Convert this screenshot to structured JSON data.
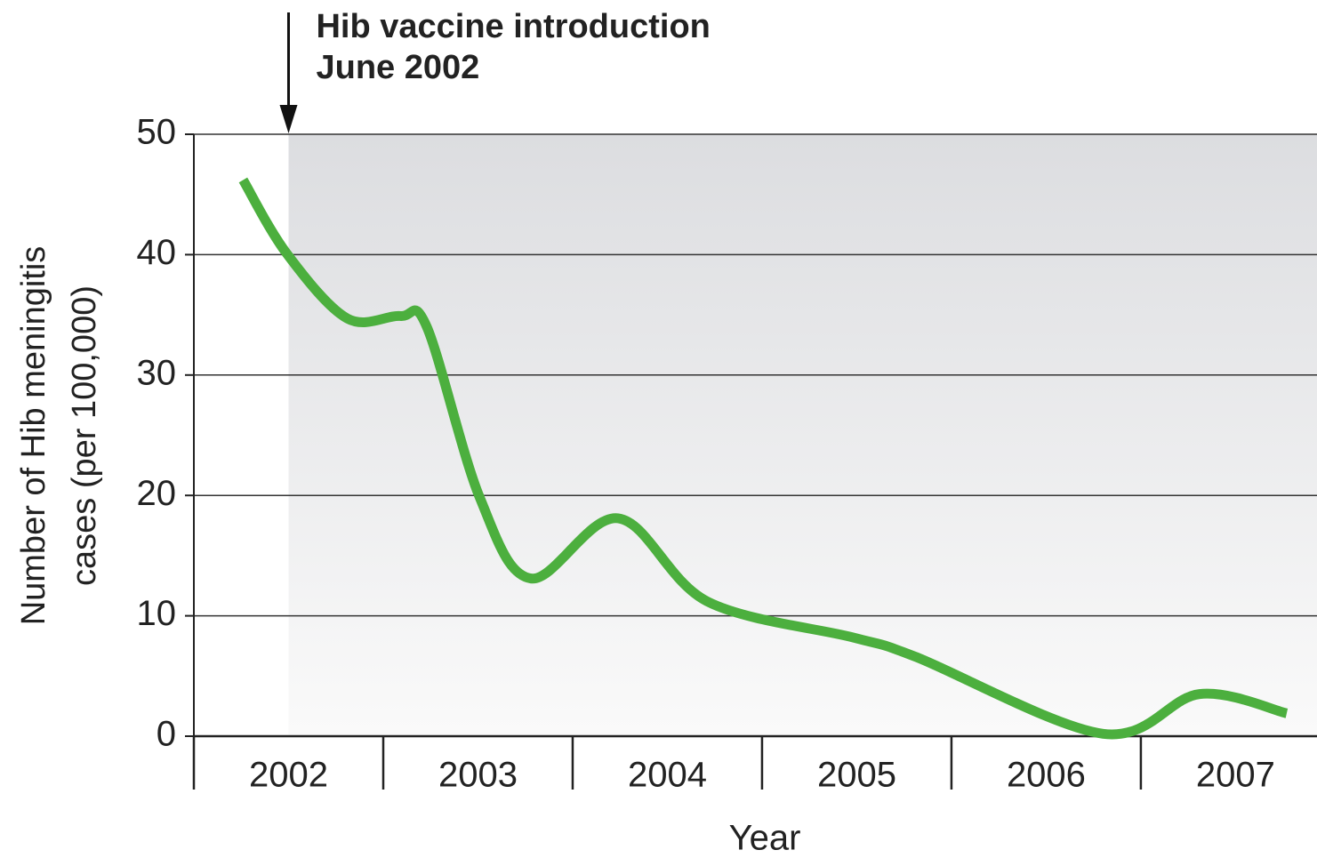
{
  "chart_data": {
    "type": "line",
    "annotation": {
      "x": 2002.5,
      "lines": [
        "Hib vaccine introduction",
        "June 2002"
      ]
    },
    "ylabel": [
      "Number of Hib meningitis",
      "cases (per 100,000)"
    ],
    "xlabel": "Year",
    "x": [
      2002.26,
      2002.49,
      2002.81,
      2003.09,
      2003.23,
      2003.51,
      2003.78,
      2004.24,
      2004.71,
      2005.48,
      2005.81,
      2006.8,
      2007.31,
      2007.77
    ],
    "series": [
      {
        "color": "#4caf3e",
        "values": [
          46.2,
          40.1,
          34.7,
          34.9,
          34.0,
          19.8,
          13.1,
          18.1,
          11.2,
          8.2,
          6.6,
          0.2,
          3.5,
          1.9
        ]
      }
    ],
    "xlim": [
      2002,
      2007.93
    ],
    "xticks": [
      2002,
      2003,
      2004,
      2005,
      2006,
      2007
    ],
    "ylim": [
      0,
      50
    ],
    "yticks": [
      0,
      10,
      20,
      30,
      40,
      50
    ],
    "grid": true
  }
}
